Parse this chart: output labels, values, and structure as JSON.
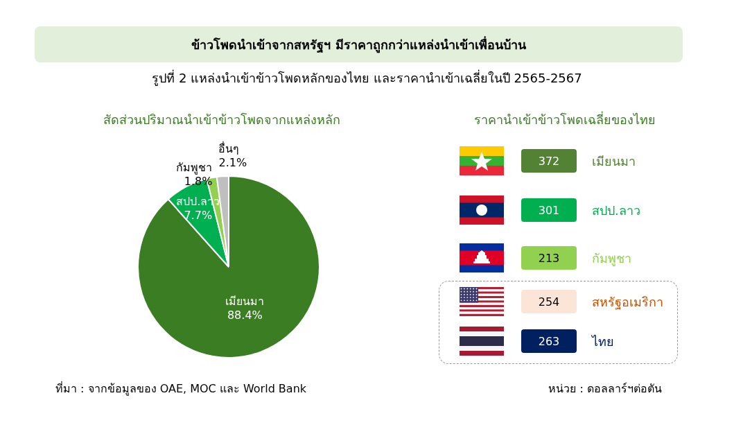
{
  "chart_data": [
    {
      "type": "pie",
      "title": "สัดส่วนปริมาณนำเข้าข้าวโพดจากแหล่งหลัก",
      "categories": [
        "เมียนมา",
        "สปป.ลาว",
        "กัมพูชา",
        "อื่นๆ"
      ],
      "values": [
        88.4,
        7.7,
        1.8,
        2.1
      ],
      "value_labels": [
        "88.4%",
        "7.7%",
        "1.8%",
        "2.1%"
      ],
      "colors": [
        "#3b7d23",
        "#00b050",
        "#92d050",
        "#bfbfbf"
      ],
      "annotations": [
        "ข้าวโพดนำเข้าจากสหรัฐฯ มีราคาถูกกว่าแหล่งนำเข้าเพื่อนบ้าน",
        "รูปที่ 2 แหล่งนำเข้าข้าวโพดหลักของไทย และราคานำเข้าเฉลี่ยในปี 2565-2567",
        "ที่มา : จากข้อมูลของ OAE, MOC และ World Bank"
      ]
    },
    {
      "type": "other",
      "title": "ราคานำเข้าข้าวโพดเฉลี่ยของไทย",
      "categories": [
        "เมียนมา",
        "สปป.ลาว",
        "กัมพูชา",
        "สหรัฐอเมริกา",
        "ไทย"
      ],
      "values": [
        372,
        301,
        213,
        254,
        263
      ],
      "colors": [
        "#548235",
        "#00b050",
        "#92d050",
        "#fbe5d6",
        "#002060"
      ],
      "data_labels": true,
      "annotations": [
        "หน่วย : ดอลลาร์ฯต่อตัน"
      ]
    }
  ]
}
